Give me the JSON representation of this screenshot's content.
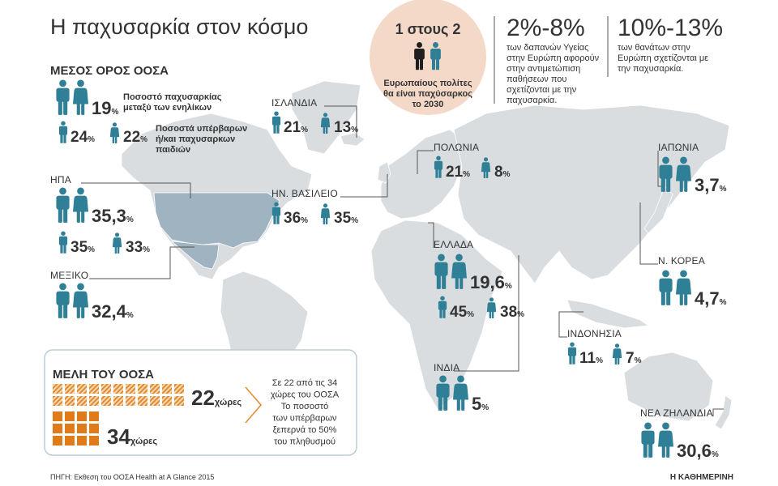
{
  "title": "Η παχυσαρκία στον κόσμο",
  "oecd_average": {
    "heading": "ΜΕΣΟΣ ΟΡΟΣ ΟΟΣΑ",
    "adults": {
      "value": "19",
      "unit": "%"
    },
    "adults_label": [
      "Ποσοστό παχυσαρκίας",
      "μεταξύ των ενηλίκων"
    ],
    "boys": {
      "value": "24",
      "unit": "%"
    },
    "girls": {
      "value": "22",
      "unit": "%"
    },
    "children_label": [
      "Ποσοστά υπέρβαρων",
      "ή/και παχυσαρκων",
      "παιδιών"
    ]
  },
  "highlights": [
    {
      "figure": "1 στους 2",
      "text": [
        "Ευρωπαίους πολίτες",
        "θα είναι παχύσαρκος",
        "το 2030"
      ]
    },
    {
      "figure": "2%-8%",
      "text": [
        "των δαπανών Υγείας",
        "στην Ευρώπη αφορούν",
        "στην αντιμετώπιση",
        "παθήσεων που",
        "σχετίζονται με την",
        "παχυσαρκία."
      ]
    },
    {
      "figure": "10%-13%",
      "text": [
        "των θανάτων στην",
        "Ευρώπη σχετίζονται με",
        "την παχυσαρκία."
      ]
    }
  ],
  "countries": [
    {
      "name": "ΗΠΑ",
      "adults": {
        "value": "35,3",
        "unit": "%"
      },
      "boys": {
        "value": "35",
        "unit": "%"
      },
      "girls": {
        "value": "33",
        "unit": "%"
      }
    },
    {
      "name": "ΜΕΞΙΚΟ",
      "adults": {
        "value": "32,4",
        "unit": "%"
      }
    },
    {
      "name": "ΙΣΛΑΝΔΙΑ",
      "boys": {
        "value": "21",
        "unit": "%"
      },
      "girls": {
        "value": "13",
        "unit": "%"
      }
    },
    {
      "name": "ΠΟΛΩΝΙΑ",
      "boys": {
        "value": "21",
        "unit": "%"
      },
      "girls": {
        "value": "8",
        "unit": "%"
      }
    },
    {
      "name": "ΗΝ. ΒΑΣΙΛΕΙΟ",
      "boys": {
        "value": "36",
        "unit": "%"
      },
      "girls": {
        "value": "35",
        "unit": "%"
      }
    },
    {
      "name": "ΕΛΛΑΔΑ",
      "adults": {
        "value": "19,6",
        "unit": "%"
      },
      "boys": {
        "value": "45",
        "unit": "%"
      },
      "girls": {
        "value": "38",
        "unit": "%"
      }
    },
    {
      "name": "ΙΝΔΙΑ",
      "adults": {
        "value": "5",
        "unit": "%"
      }
    },
    {
      "name": "ΙΝΔΟΝΗΣΙΑ",
      "boys": {
        "value": "11",
        "unit": "%"
      },
      "girls": {
        "value": "7",
        "unit": "%"
      }
    },
    {
      "name": "ΙΑΠΩΝΙΑ",
      "adults": {
        "value": "3,7",
        "unit": "%"
      }
    },
    {
      "name": "Ν. ΚΟΡΕΑ",
      "adults": {
        "value": "4,7",
        "unit": "%"
      }
    },
    {
      "name": "ΝΕΑ ΖΗΛΑΝΔΙΑ",
      "adults": {
        "value": "30,6",
        "unit": "%"
      }
    }
  ],
  "oecd_members": {
    "heading": "ΜΕΛΗ ΤΟΥ ΟΟΣΑ",
    "over": {
      "value": "22",
      "unit": "χώρες"
    },
    "total": {
      "value": "34",
      "unit": "χώρες"
    },
    "text": [
      "Σε 22 από τις 34",
      "χώρες του ΟΟΣΑ",
      "Το ποσοστό",
      "των υπέρβαρων",
      "ξεπερνά το 50%",
      "του πληθυσμού"
    ]
  },
  "source": "ΠΗΓΗ: Εκθεση του ΟΟΣΑ Health at A Glance 2015",
  "brand": "Η ΚΑΘΗΜΕΡΙΝΗ"
}
